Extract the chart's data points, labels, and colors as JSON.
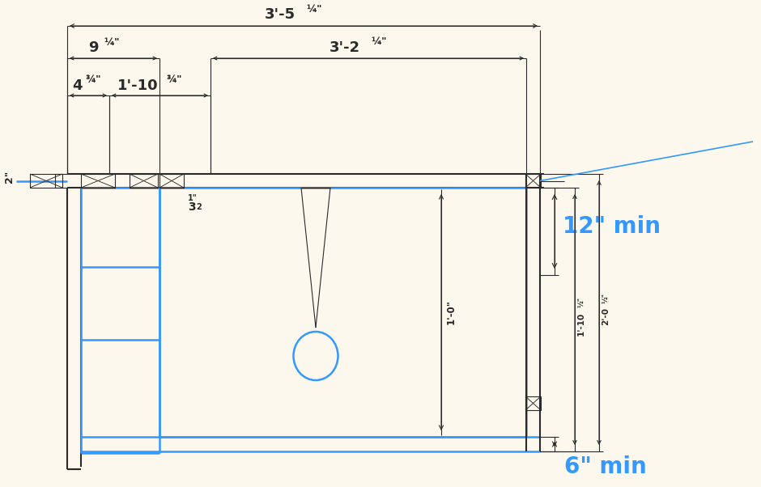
{
  "bg_color": "#fdf8ee",
  "dark": "#2a2a2a",
  "blue": "#3399ff",
  "lw_main": 1.5,
  "lw_thin": 0.8,
  "lw_blue": 1.8,
  "labels": {
    "dim_top": "3'-5",
    "dim_top_fr": "¼\"",
    "dim_9": "9",
    "dim_9_fr": "¼\"",
    "dim_4": "4",
    "dim_4_fr": "¾\"",
    "dim_110": "1'-10",
    "dim_110_fr": "¾\"",
    "dim_32": "3'-2",
    "dim_32_fr": "¼\"",
    "dim_2in": "2\"",
    "dim_132": "1\"",
    "dim_132b": "3",
    "dim_132c": "2",
    "dim_1ft": "1'-0\"",
    "dim_12min": "12\" min",
    "dim_1102": "1'-10",
    "dim_1102_fr": "½\"",
    "dim_202": "2'-0",
    "dim_202_fr": "½\"",
    "dim_6min": "6\" min"
  }
}
